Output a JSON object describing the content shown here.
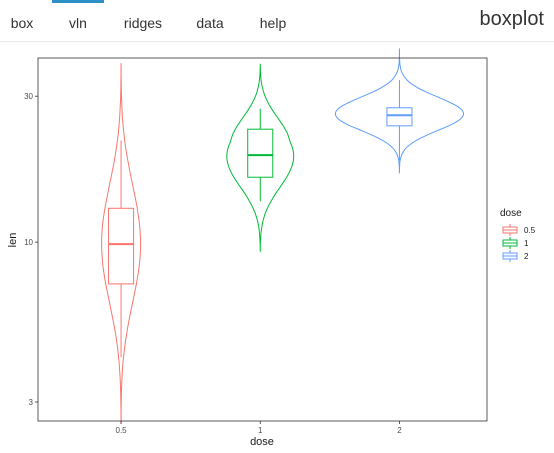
{
  "navbar": {
    "tabs": [
      {
        "label": "box",
        "active": false
      },
      {
        "label": "vln",
        "active": true
      },
      {
        "label": "ridges",
        "active": false
      },
      {
        "label": "data",
        "active": false
      },
      {
        "label": "help",
        "active": false
      }
    ],
    "brand": "boxplot",
    "accent_color": "#2c8fc8"
  },
  "chart_data": {
    "type": "violin",
    "xlabel": "dose",
    "ylabel": "len",
    "y_scale": "log",
    "ylim": [
      2.6,
      40
    ],
    "y_ticks": [
      3,
      10,
      30
    ],
    "categories": [
      "0.5",
      "1",
      "2"
    ],
    "grid": false,
    "legend": {
      "title": "dose",
      "position": "right"
    },
    "series": [
      {
        "name": "0.5",
        "color": "#F8766D",
        "min": 4.2,
        "q1": 7.3,
        "median": 9.85,
        "q3": 12.9,
        "max": 21.5,
        "violin_extent": [
          2.55,
          38.5
        ],
        "violin_max_halfwidth": 0.14
      },
      {
        "name": "1",
        "color": "#00BA38",
        "min": 13.6,
        "q1": 16.3,
        "median": 19.25,
        "q3": 23.4,
        "max": 27.3,
        "violin_extent": [
          9.3,
          38.3
        ],
        "violin_max_halfwidth": 0.24
      },
      {
        "name": "2",
        "color": "#619CFF",
        "min": 18.5,
        "q1": 24.0,
        "median": 26.0,
        "q3": 27.5,
        "max": 33.9,
        "violin_extent": [
          16.8,
          43
        ],
        "violin_max_halfwidth": 0.46
      }
    ]
  }
}
